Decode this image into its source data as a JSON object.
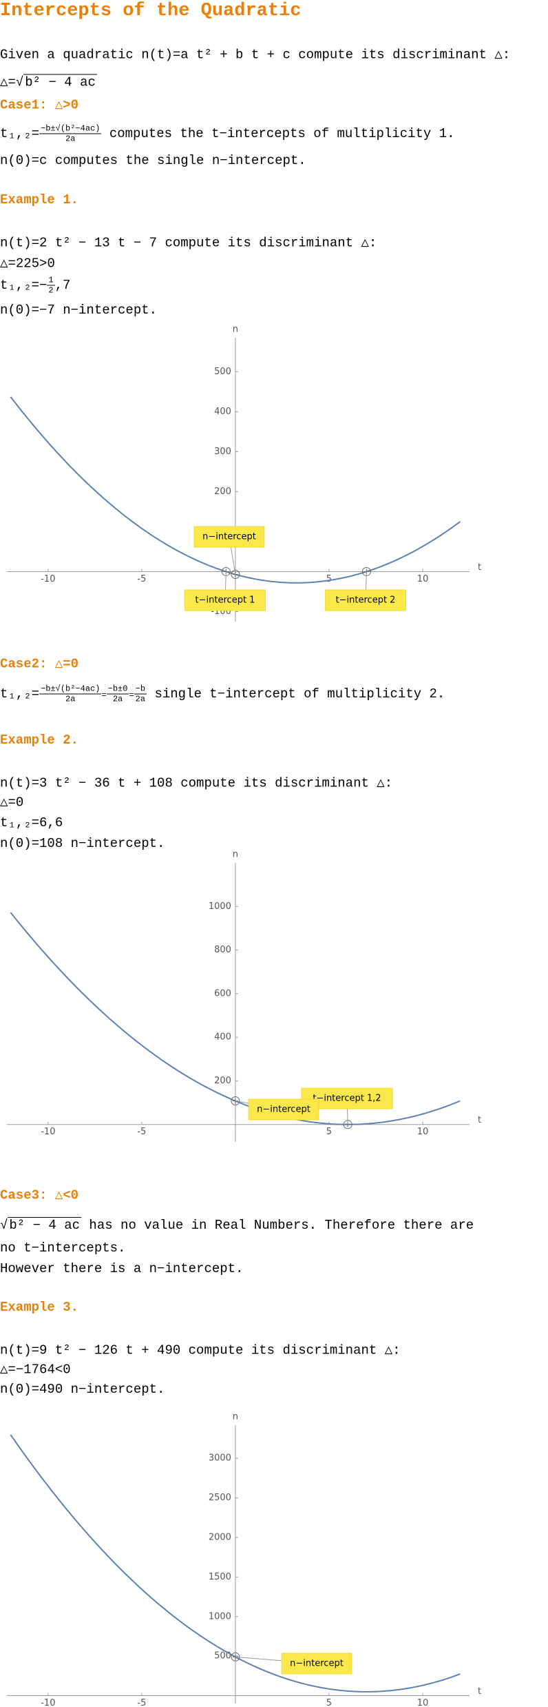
{
  "title": "Intercepts of the Quadratic",
  "intro": "Given a quadratic n(t)=a t² + b t + c compute its discriminant △:",
  "discriminant": {
    "lhs": "△=",
    "radicand": "b² − 4 ac"
  },
  "case1": {
    "heading": "Case1: △>0",
    "lhs": "t₁,₂=",
    "num": "−b±√(b²−4ac)",
    "den": "2a",
    "rest": " computes the t−intercepts of multiplicity 1.",
    "line2": "n(0)=c computes the single n−intercept."
  },
  "example1": {
    "heading": "Example 1.",
    "line1": "n(t)=2 t² − 13 t − 7 compute its discriminant △:",
    "line2": "△=225>0",
    "roots": {
      "lhs": "t₁,₂=−",
      "num": "1",
      "den": "2",
      "rhs": ",7"
    },
    "line4": "n(0)=−7 n−intercept."
  },
  "case2": {
    "heading": "Case2: △=0",
    "lhs": "t₁,₂=",
    "num1": "−b±√(b²−4ac)",
    "den1": "2a",
    "eq1": "=",
    "num2": "−b±0",
    "den2": "2a",
    "eq2": "=",
    "num3": "−b",
    "den3": "2a",
    "rest": " single t−intercept of multiplicity 2."
  },
  "example2": {
    "heading": "Example 2.",
    "line1": "n(t)=3 t² − 36 t + 108 compute its discriminant △:",
    "line2": "△=0",
    "line3": "t₁,₂=6,6",
    "line4": "n(0)=108 n−intercept."
  },
  "case3": {
    "heading": "Case3: △<0",
    "radicand": "b² − 4 ac",
    "rest": " has no value in Real Numbers. Therefore there are",
    "line2": "no t−intercepts.",
    "line3": "However there is a n−intercept."
  },
  "example3": {
    "heading": "Example 3.",
    "line1": "n(t)=9 t² − 126 t + 490 compute its discriminant △:",
    "line2": "△=−1764<0",
    "line3": "n(0)=490 n−intercept."
  },
  "plots": [
    {
      "x_label": "t",
      "y_label": "n",
      "xlim": [
        -12.2,
        12.5
      ],
      "ylim": [
        -125,
        585
      ],
      "xticks": [
        -10,
        -5,
        5,
        10
      ],
      "yticks": [
        -100,
        100,
        200,
        300,
        400,
        500
      ],
      "curve": {
        "a": 2,
        "b": -13,
        "c": -7,
        "domain": [
          -12,
          12
        ]
      },
      "points": [
        [
          0,
          -7
        ],
        [
          -0.5,
          0
        ],
        [
          7,
          0
        ]
      ],
      "callouts": [
        "n−intercept",
        "t−intercept 1",
        "t−intercept 2"
      ]
    },
    {
      "x_label": "t",
      "y_label": "n",
      "xlim": [
        -12.2,
        12.5
      ],
      "ylim": [
        -80,
        1200
      ],
      "xticks": [
        -10,
        -5,
        5,
        10
      ],
      "yticks": [
        200,
        400,
        600,
        800,
        1000
      ],
      "curve": {
        "a": 3,
        "b": -36,
        "c": 108,
        "domain": [
          -12,
          12
        ]
      },
      "points": [
        [
          6,
          0
        ],
        [
          0,
          108
        ]
      ],
      "callouts": [
        "t−intercept 1,2",
        "n−intercept"
      ]
    },
    {
      "x_label": "t",
      "y_label": "n",
      "xlim": [
        -12.2,
        12.5
      ],
      "ylim": [
        -100,
        3420
      ],
      "xticks": [
        -10,
        -5,
        5,
        10
      ],
      "yticks": [
        500,
        1000,
        1500,
        2000,
        2500,
        3000
      ],
      "curve": {
        "a": 9,
        "b": -126,
        "c": 490,
        "domain": [
          -12,
          12
        ]
      },
      "points": [
        [
          0,
          490
        ]
      ],
      "callouts": [
        "n−intercept"
      ]
    }
  ]
}
